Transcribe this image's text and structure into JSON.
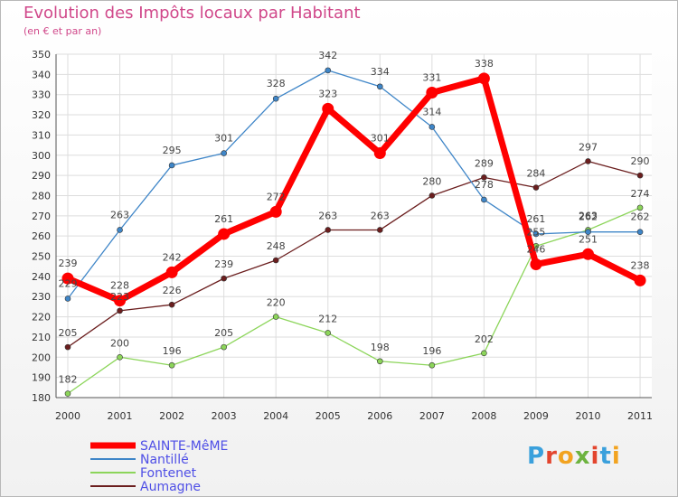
{
  "title": "Evolution des Impôts locaux par Habitant",
  "subtitle": "(en € et par an)",
  "logo": {
    "letters": [
      "P",
      "r",
      "o",
      "x",
      "i",
      "t",
      "i"
    ],
    "colors": [
      "#3aa0dc",
      "#e3452e",
      "#f2a320",
      "#6db33f",
      "#e3452e",
      "#3aa0dc",
      "#f2a320"
    ]
  },
  "chart_data": {
    "type": "line",
    "categories": [
      "2000",
      "2001",
      "2002",
      "2003",
      "2004",
      "2005",
      "2006",
      "2007",
      "2008",
      "2009",
      "2010",
      "2011"
    ],
    "ylim": [
      180,
      350
    ],
    "yticks": [
      "180",
      "190",
      "200",
      "210",
      "220",
      "230",
      "240",
      "250",
      "260",
      "270",
      "280",
      "290",
      "300",
      "310",
      "320",
      "330",
      "340",
      "350"
    ],
    "grid": true,
    "legend_position": "bottom-left",
    "series": [
      {
        "name": "SAINTE-MêME",
        "color": "#ff0000",
        "label_color": "#4f4fe6",
        "values": [
          239,
          228,
          242,
          261,
          272,
          323,
          301,
          331,
          338,
          246,
          251,
          238
        ],
        "labels": [
          "239",
          "228",
          "242",
          "261",
          "272",
          "323",
          "301",
          "331",
          "338",
          "246",
          "251",
          "238"
        ]
      },
      {
        "name": "Nantillé",
        "color": "#3f86c8",
        "label_color": "#4f4fe6",
        "values": [
          229,
          263,
          295,
          301,
          328,
          342,
          334,
          314,
          278,
          261,
          262,
          262
        ],
        "labels": [
          "229",
          "263",
          "295",
          "301",
          "328",
          "342",
          "334",
          "314",
          "278",
          "261",
          "262",
          "262"
        ]
      },
      {
        "name": "Fontenet",
        "color": "#8cd55a",
        "label_color": "#4f4fe6",
        "values": [
          182,
          200,
          196,
          205,
          220,
          212,
          198,
          196,
          202,
          255,
          263,
          274
        ],
        "labels": [
          "182",
          "200",
          "196",
          "205",
          "220",
          "212",
          "198",
          "196",
          "202",
          "255",
          "263",
          "274"
        ]
      },
      {
        "name": "Aumagne",
        "color": "#6b1e1e",
        "label_color": "#4f4fe6",
        "values": [
          205,
          223,
          226,
          239,
          248,
          263,
          263,
          280,
          289,
          284,
          297,
          290
        ],
        "labels": [
          "205",
          "223",
          "226",
          "239",
          "248",
          "263",
          "263",
          "280",
          "289",
          "284",
          "297",
          "290"
        ]
      }
    ]
  }
}
